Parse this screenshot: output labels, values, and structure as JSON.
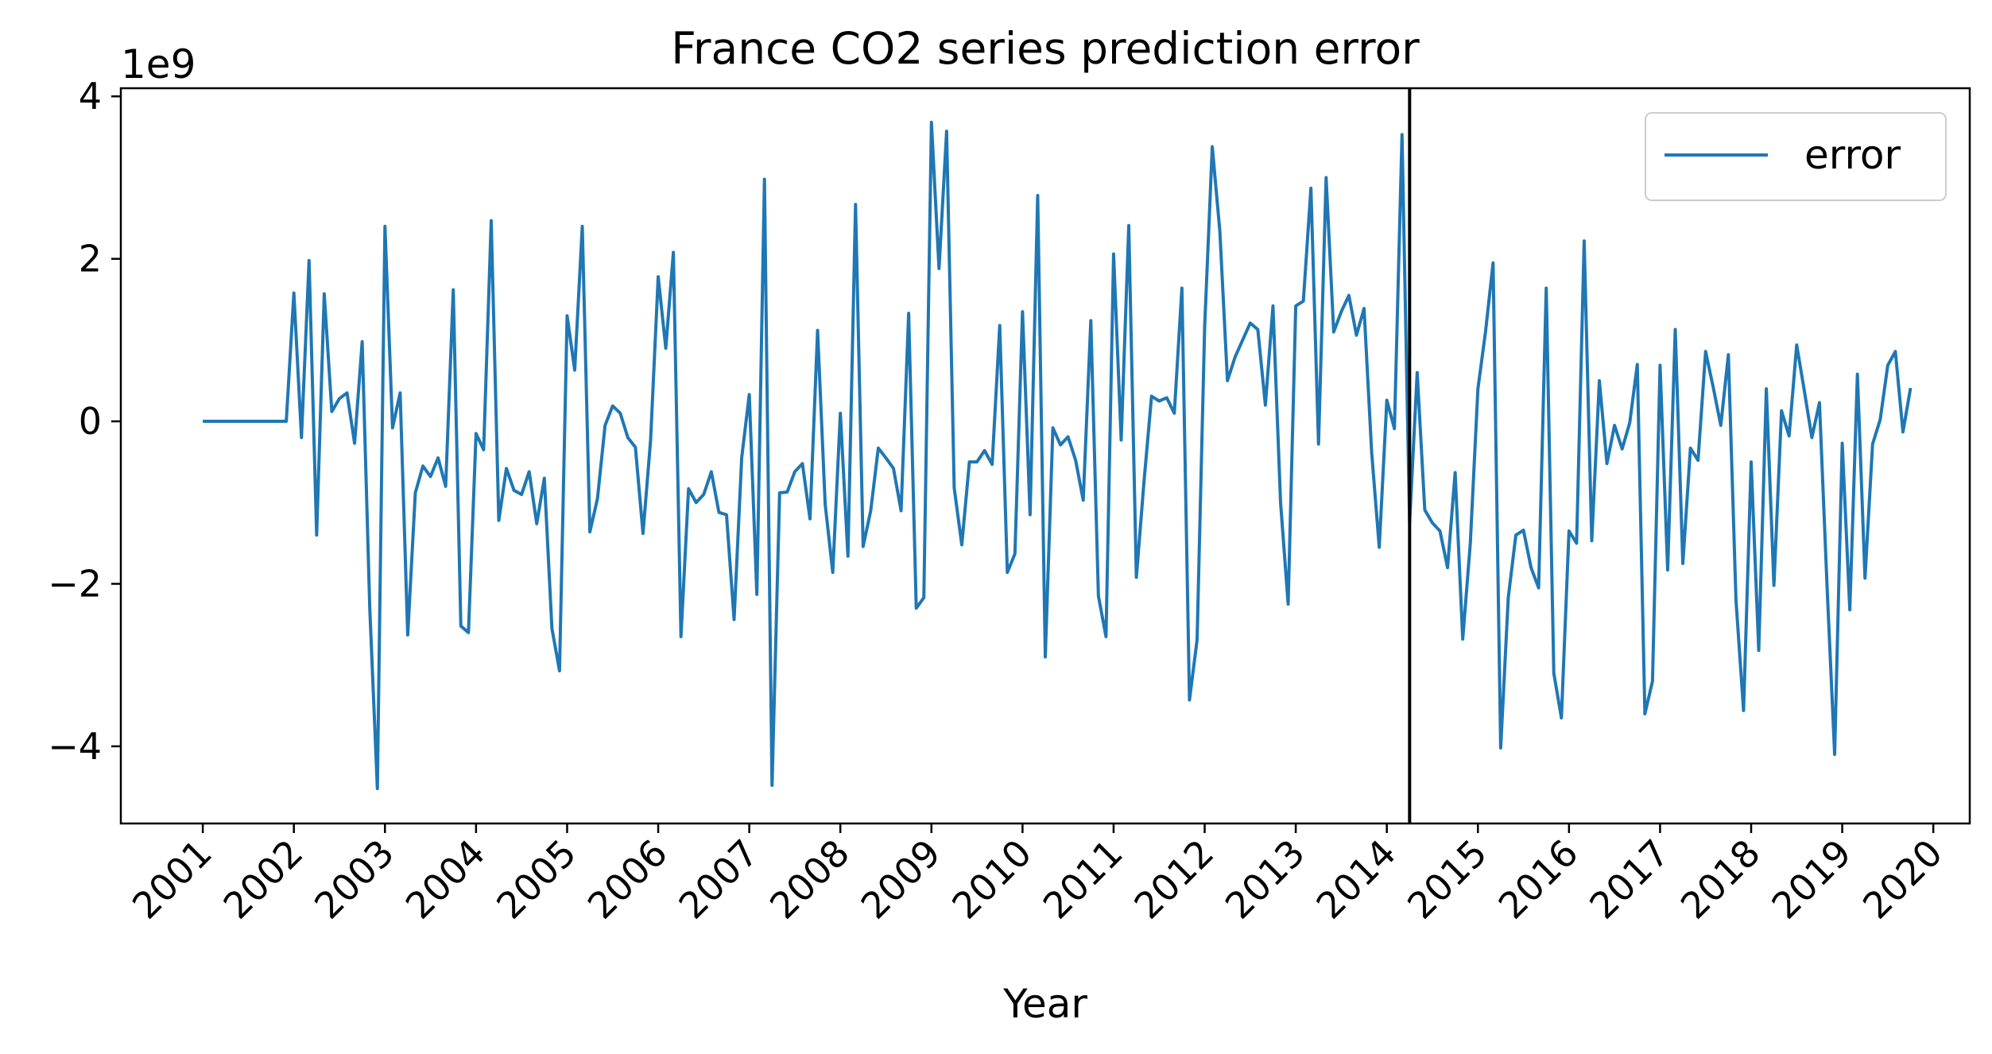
{
  "chart_data": {
    "type": "line",
    "title": "France  CO2 series prediction error",
    "xlabel": "Year",
    "ylabel": "",
    "y_offset_label": "1e9",
    "y_scale": 1000000000,
    "xlim": [
      2000.1,
      2020.4
    ],
    "ylim": [
      -4.95,
      4.1
    ],
    "x_ticks": [
      "2001",
      "2002",
      "2003",
      "2004",
      "2005",
      "2006",
      "2007",
      "2008",
      "2009",
      "2010",
      "2011",
      "2012",
      "2013",
      "2014",
      "2015",
      "2016",
      "2017",
      "2018",
      "2019",
      "2020"
    ],
    "y_ticks": [
      -4,
      -2,
      0,
      2,
      4
    ],
    "y_tick_labels": [
      "−4",
      "−2",
      "0",
      "2",
      "4"
    ],
    "x_tick_rotation": "45 degrees",
    "grid": false,
    "legend": {
      "position": "top-right",
      "entries": [
        "error"
      ]
    },
    "vline": {
      "x": 2014.25,
      "color": "#000000"
    },
    "colors": {
      "series": "#1f77b4",
      "vline": "#000000",
      "axes": "#000000"
    },
    "series": [
      {
        "name": "error",
        "x_start": 2001.0,
        "x_step": 0.0833333,
        "values": [
          0,
          0,
          0,
          0,
          0,
          0,
          0,
          0,
          0,
          0,
          0,
          0,
          1.58,
          -0.2,
          1.98,
          -1.4,
          1.57,
          0.12,
          0.28,
          0.35,
          -0.27,
          0.98,
          -2.3,
          -4.52,
          2.4,
          -0.08,
          0.35,
          -2.63,
          -0.88,
          -0.55,
          -0.68,
          -0.45,
          -0.8,
          1.62,
          -2.52,
          -2.6,
          -0.15,
          -0.35,
          2.47,
          -1.22,
          -0.58,
          -0.85,
          -0.9,
          -0.62,
          -1.26,
          -0.7,
          -2.55,
          -3.07,
          1.3,
          0.63,
          2.4,
          -1.36,
          -0.95,
          -0.05,
          0.19,
          0.1,
          -0.2,
          -0.32,
          -1.38,
          -0.23,
          1.78,
          0.9,
          2.08,
          -2.65,
          -0.83,
          -1.0,
          -0.9,
          -0.62,
          -1.12,
          -1.15,
          -2.44,
          -0.45,
          0.33,
          -2.13,
          2.98,
          -4.48,
          -0.88,
          -0.87,
          -0.62,
          -0.52,
          -1.2,
          1.12,
          -1.02,
          -1.86,
          0.1,
          -1.66,
          2.67,
          -1.54,
          -1.1,
          -0.33,
          -0.45,
          -0.58,
          -1.1,
          1.33,
          -2.3,
          -2.17,
          3.68,
          1.88,
          3.57,
          -0.82,
          -1.52,
          -0.5,
          -0.5,
          -0.36,
          -0.53,
          1.18,
          -1.86,
          -1.63,
          1.35,
          -1.15,
          2.78,
          -2.9,
          -0.08,
          -0.29,
          -0.19,
          -0.48,
          -0.97,
          1.24,
          -2.15,
          -2.65,
          2.06,
          -0.23,
          2.41,
          -1.92,
          -0.75,
          0.31,
          0.25,
          0.29,
          0.1,
          1.64,
          -3.43,
          -2.69,
          1.17,
          3.38,
          2.34,
          0.5,
          0.79,
          1.0,
          1.21,
          1.13,
          0.2,
          1.42,
          -1.0,
          -2.25,
          1.42,
          1.48,
          2.87,
          -0.28,
          3.0,
          1.1,
          1.35,
          1.55,
          1.06,
          1.39,
          -0.38,
          -1.55,
          0.26,
          -0.09,
          3.53,
          -1.25,
          0.6,
          -1.09,
          -1.25,
          -1.35,
          -1.8,
          -0.63,
          -2.68,
          -1.5,
          0.4,
          1.1,
          1.95,
          -4.02,
          -2.17,
          -1.4,
          -1.34,
          -1.8,
          -2.05,
          1.64,
          -3.1,
          -3.65,
          -1.35,
          -1.5,
          2.22,
          -1.47,
          0.5,
          -0.52,
          -0.05,
          -0.34,
          -0.02,
          0.7,
          -3.6,
          -3.2,
          0.69,
          -1.83,
          1.13,
          -1.75,
          -0.33,
          -0.48,
          0.86,
          0.42,
          -0.05,
          0.82,
          -2.2,
          -3.56,
          -0.5,
          -2.82,
          0.4,
          -2.02,
          0.13,
          -0.18,
          0.94,
          0.38,
          -0.2,
          0.23,
          -2.03,
          -4.1,
          -0.27,
          -2.32,
          0.58,
          -1.93,
          -0.28,
          0.02,
          0.69,
          0.86,
          -0.13,
          0.41
        ]
      }
    ]
  }
}
